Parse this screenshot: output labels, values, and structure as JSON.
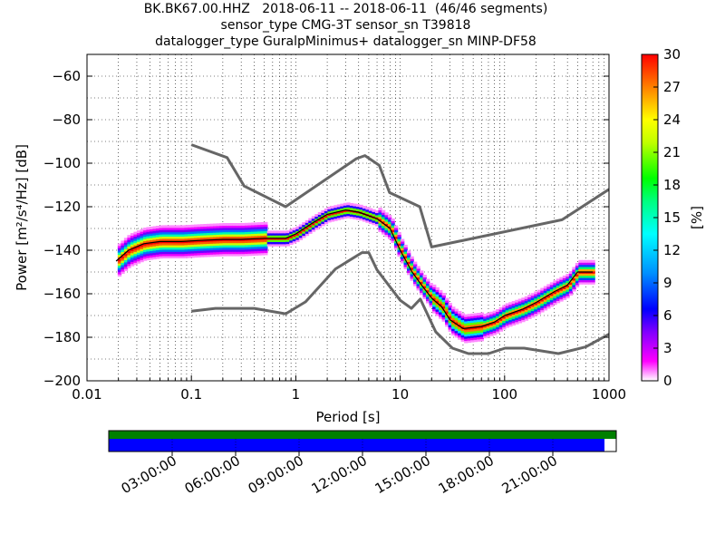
{
  "chart_data": {
    "type": "heatmap",
    "title_lines": [
      "BK.BK67.00.HHZ   2018-06-11 -- 2018-06-11  (46/46 segments)",
      "sensor_type CMG-3T sensor_sn T39818",
      "datalogger_type GuralpMinimus+ datalogger_sn MINP-DF58"
    ],
    "xlabel": "Period [s]",
    "ylabel": "Power [m²/s⁴/Hz] [dB]",
    "x_scale": "log",
    "xlim": [
      0.01,
      1000
    ],
    "ylim": [
      -200,
      -50
    ],
    "x_ticks": [
      {
        "value": 0.01,
        "label": "0.01"
      },
      {
        "value": 0.1,
        "label": "0.1"
      },
      {
        "value": 1,
        "label": "1"
      },
      {
        "value": 10,
        "label": "10"
      },
      {
        "value": 100,
        "label": "100"
      },
      {
        "value": 1000,
        "label": "1000"
      }
    ],
    "y_ticks": [
      {
        "value": -60,
        "label": "−60"
      },
      {
        "value": -80,
        "label": "−80"
      },
      {
        "value": -100,
        "label": "−100"
      },
      {
        "value": -120,
        "label": "−120"
      },
      {
        "value": -140,
        "label": "−140"
      },
      {
        "value": -160,
        "label": "−160"
      },
      {
        "value": -180,
        "label": "−180"
      },
      {
        "value": -200,
        "label": "−200"
      }
    ],
    "grid": "dotted",
    "colorbar": {
      "label": "[%]",
      "range": [
        0,
        30
      ],
      "ticks": [
        "0",
        "3",
        "6",
        "9",
        "12",
        "15",
        "18",
        "21",
        "24",
        "27",
        "30"
      ],
      "colormap": [
        "#ffffff",
        "#ff00ff",
        "#8000ff",
        "#0000ff",
        "#0080ff",
        "#00ffff",
        "#00ff80",
        "#00ff00",
        "#c0ff00",
        "#ffff00",
        "#ff8000",
        "#ff0000"
      ]
    },
    "nlnm": [
      [
        0.1,
        -168
      ],
      [
        0.17,
        -166.7
      ],
      [
        0.4,
        -166.7
      ],
      [
        0.8,
        -169.2
      ],
      [
        1.24,
        -163.7
      ],
      [
        2.4,
        -148.6
      ],
      [
        4.3,
        -141.1
      ],
      [
        5.0,
        -141.1
      ],
      [
        6.0,
        -149
      ],
      [
        10,
        -163
      ],
      [
        12.8,
        -166.7
      ],
      [
        15.6,
        -162.4
      ],
      [
        21.9,
        -177.5
      ],
      [
        31.6,
        -185
      ],
      [
        45,
        -187.5
      ],
      [
        70,
        -187.5
      ],
      [
        101,
        -185
      ],
      [
        154,
        -185
      ],
      [
        328,
        -187.5
      ],
      [
        600,
        -184.4
      ],
      [
        1000,
        -178.6
      ]
    ],
    "nhnm": [
      [
        0.1,
        -91.5
      ],
      [
        0.22,
        -97.4
      ],
      [
        0.32,
        -110.5
      ],
      [
        0.8,
        -120
      ],
      [
        3.8,
        -97.9
      ],
      [
        4.6,
        -96.5
      ],
      [
        6.3,
        -101
      ],
      [
        7.9,
        -113.5
      ],
      [
        15.4,
        -120
      ],
      [
        20,
        -138.5
      ],
      [
        354.8,
        -126
      ],
      [
        1000,
        -112
      ]
    ],
    "mode_curve": [
      [
        0.019,
        -145
      ],
      [
        0.025,
        -140
      ],
      [
        0.035,
        -137
      ],
      [
        0.05,
        -136
      ],
      [
        0.08,
        -136
      ],
      [
        0.12,
        -135.5
      ],
      [
        0.2,
        -135
      ],
      [
        0.3,
        -135
      ],
      [
        0.5,
        -134.5
      ],
      [
        0.8,
        -134.5
      ],
      [
        1.0,
        -132.5
      ],
      [
        1.5,
        -127
      ],
      [
        2.0,
        -123.5
      ],
      [
        3.0,
        -121.5
      ],
      [
        4.0,
        -122.5
      ],
      [
        6.0,
        -125.5
      ],
      [
        8.0,
        -130
      ],
      [
        10,
        -140
      ],
      [
        13,
        -150
      ],
      [
        16,
        -156
      ],
      [
        20,
        -162
      ],
      [
        25,
        -166
      ],
      [
        30,
        -172
      ],
      [
        40,
        -176
      ],
      [
        60,
        -175
      ],
      [
        80,
        -173
      ],
      [
        100,
        -170
      ],
      [
        150,
        -167
      ],
      [
        200,
        -164
      ],
      [
        300,
        -159
      ],
      [
        400,
        -156
      ],
      [
        500,
        -150
      ],
      [
        700,
        -150
      ]
    ],
    "colorbar_ticks_label": "[%]"
  },
  "coverage": {
    "time_ticks": [
      "03:00:00",
      "06:00:00",
      "09:00:00",
      "12:00:00",
      "15:00:00",
      "18:00:00",
      "21:00:00"
    ],
    "colors": {
      "data": "#0000ff",
      "availability": "#008000"
    }
  }
}
